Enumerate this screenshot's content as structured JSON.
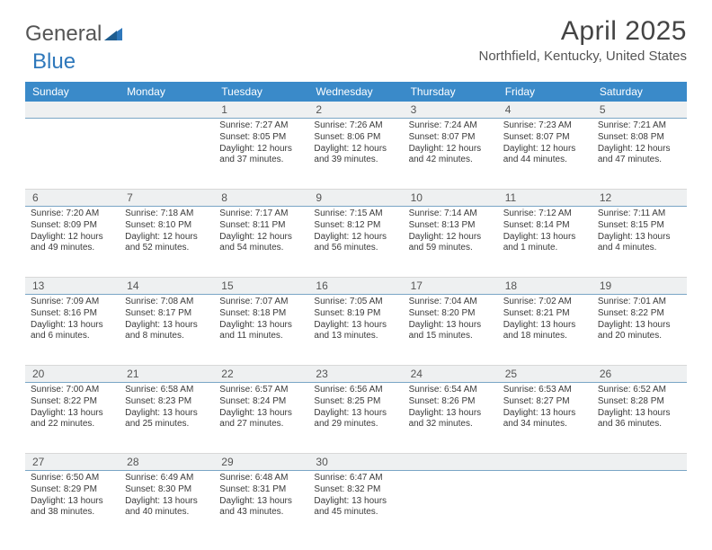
{
  "logo": {
    "word1": "General",
    "word2": "Blue"
  },
  "title": "April 2025",
  "location": "Northfield, Kentucky, United States",
  "colors": {
    "header_bg": "#3a8ac9",
    "header_fg": "#ffffff",
    "daterow_bg": "#eef0f1",
    "daterow_border": "#7aa6c6",
    "cell_border": "#d8d8d8",
    "text": "#3a3a3a",
    "title_color": "#444444",
    "logo_blue": "#2f78bb"
  },
  "day_names": [
    "Sunday",
    "Monday",
    "Tuesday",
    "Wednesday",
    "Thursday",
    "Friday",
    "Saturday"
  ],
  "weeks": [
    {
      "dates": [
        "",
        "",
        "1",
        "2",
        "3",
        "4",
        "5"
      ],
      "cells": [
        null,
        null,
        {
          "sunrise": "Sunrise: 7:27 AM",
          "sunset": "Sunset: 8:05 PM",
          "dl1": "Daylight: 12 hours",
          "dl2": "and 37 minutes."
        },
        {
          "sunrise": "Sunrise: 7:26 AM",
          "sunset": "Sunset: 8:06 PM",
          "dl1": "Daylight: 12 hours",
          "dl2": "and 39 minutes."
        },
        {
          "sunrise": "Sunrise: 7:24 AM",
          "sunset": "Sunset: 8:07 PM",
          "dl1": "Daylight: 12 hours",
          "dl2": "and 42 minutes."
        },
        {
          "sunrise": "Sunrise: 7:23 AM",
          "sunset": "Sunset: 8:07 PM",
          "dl1": "Daylight: 12 hours",
          "dl2": "and 44 minutes."
        },
        {
          "sunrise": "Sunrise: 7:21 AM",
          "sunset": "Sunset: 8:08 PM",
          "dl1": "Daylight: 12 hours",
          "dl2": "and 47 minutes."
        }
      ]
    },
    {
      "dates": [
        "6",
        "7",
        "8",
        "9",
        "10",
        "11",
        "12"
      ],
      "cells": [
        {
          "sunrise": "Sunrise: 7:20 AM",
          "sunset": "Sunset: 8:09 PM",
          "dl1": "Daylight: 12 hours",
          "dl2": "and 49 minutes."
        },
        {
          "sunrise": "Sunrise: 7:18 AM",
          "sunset": "Sunset: 8:10 PM",
          "dl1": "Daylight: 12 hours",
          "dl2": "and 52 minutes."
        },
        {
          "sunrise": "Sunrise: 7:17 AM",
          "sunset": "Sunset: 8:11 PM",
          "dl1": "Daylight: 12 hours",
          "dl2": "and 54 minutes."
        },
        {
          "sunrise": "Sunrise: 7:15 AM",
          "sunset": "Sunset: 8:12 PM",
          "dl1": "Daylight: 12 hours",
          "dl2": "and 56 minutes."
        },
        {
          "sunrise": "Sunrise: 7:14 AM",
          "sunset": "Sunset: 8:13 PM",
          "dl1": "Daylight: 12 hours",
          "dl2": "and 59 minutes."
        },
        {
          "sunrise": "Sunrise: 7:12 AM",
          "sunset": "Sunset: 8:14 PM",
          "dl1": "Daylight: 13 hours",
          "dl2": "and 1 minute."
        },
        {
          "sunrise": "Sunrise: 7:11 AM",
          "sunset": "Sunset: 8:15 PM",
          "dl1": "Daylight: 13 hours",
          "dl2": "and 4 minutes."
        }
      ]
    },
    {
      "dates": [
        "13",
        "14",
        "15",
        "16",
        "17",
        "18",
        "19"
      ],
      "cells": [
        {
          "sunrise": "Sunrise: 7:09 AM",
          "sunset": "Sunset: 8:16 PM",
          "dl1": "Daylight: 13 hours",
          "dl2": "and 6 minutes."
        },
        {
          "sunrise": "Sunrise: 7:08 AM",
          "sunset": "Sunset: 8:17 PM",
          "dl1": "Daylight: 13 hours",
          "dl2": "and 8 minutes."
        },
        {
          "sunrise": "Sunrise: 7:07 AM",
          "sunset": "Sunset: 8:18 PM",
          "dl1": "Daylight: 13 hours",
          "dl2": "and 11 minutes."
        },
        {
          "sunrise": "Sunrise: 7:05 AM",
          "sunset": "Sunset: 8:19 PM",
          "dl1": "Daylight: 13 hours",
          "dl2": "and 13 minutes."
        },
        {
          "sunrise": "Sunrise: 7:04 AM",
          "sunset": "Sunset: 8:20 PM",
          "dl1": "Daylight: 13 hours",
          "dl2": "and 15 minutes."
        },
        {
          "sunrise": "Sunrise: 7:02 AM",
          "sunset": "Sunset: 8:21 PM",
          "dl1": "Daylight: 13 hours",
          "dl2": "and 18 minutes."
        },
        {
          "sunrise": "Sunrise: 7:01 AM",
          "sunset": "Sunset: 8:22 PM",
          "dl1": "Daylight: 13 hours",
          "dl2": "and 20 minutes."
        }
      ]
    },
    {
      "dates": [
        "20",
        "21",
        "22",
        "23",
        "24",
        "25",
        "26"
      ],
      "cells": [
        {
          "sunrise": "Sunrise: 7:00 AM",
          "sunset": "Sunset: 8:22 PM",
          "dl1": "Daylight: 13 hours",
          "dl2": "and 22 minutes."
        },
        {
          "sunrise": "Sunrise: 6:58 AM",
          "sunset": "Sunset: 8:23 PM",
          "dl1": "Daylight: 13 hours",
          "dl2": "and 25 minutes."
        },
        {
          "sunrise": "Sunrise: 6:57 AM",
          "sunset": "Sunset: 8:24 PM",
          "dl1": "Daylight: 13 hours",
          "dl2": "and 27 minutes."
        },
        {
          "sunrise": "Sunrise: 6:56 AM",
          "sunset": "Sunset: 8:25 PM",
          "dl1": "Daylight: 13 hours",
          "dl2": "and 29 minutes."
        },
        {
          "sunrise": "Sunrise: 6:54 AM",
          "sunset": "Sunset: 8:26 PM",
          "dl1": "Daylight: 13 hours",
          "dl2": "and 32 minutes."
        },
        {
          "sunrise": "Sunrise: 6:53 AM",
          "sunset": "Sunset: 8:27 PM",
          "dl1": "Daylight: 13 hours",
          "dl2": "and 34 minutes."
        },
        {
          "sunrise": "Sunrise: 6:52 AM",
          "sunset": "Sunset: 8:28 PM",
          "dl1": "Daylight: 13 hours",
          "dl2": "and 36 minutes."
        }
      ]
    },
    {
      "dates": [
        "27",
        "28",
        "29",
        "30",
        "",
        "",
        ""
      ],
      "cells": [
        {
          "sunrise": "Sunrise: 6:50 AM",
          "sunset": "Sunset: 8:29 PM",
          "dl1": "Daylight: 13 hours",
          "dl2": "and 38 minutes."
        },
        {
          "sunrise": "Sunrise: 6:49 AM",
          "sunset": "Sunset: 8:30 PM",
          "dl1": "Daylight: 13 hours",
          "dl2": "and 40 minutes."
        },
        {
          "sunrise": "Sunrise: 6:48 AM",
          "sunset": "Sunset: 8:31 PM",
          "dl1": "Daylight: 13 hours",
          "dl2": "and 43 minutes."
        },
        {
          "sunrise": "Sunrise: 6:47 AM",
          "sunset": "Sunset: 8:32 PM",
          "dl1": "Daylight: 13 hours",
          "dl2": "and 45 minutes."
        },
        null,
        null,
        null
      ]
    }
  ]
}
